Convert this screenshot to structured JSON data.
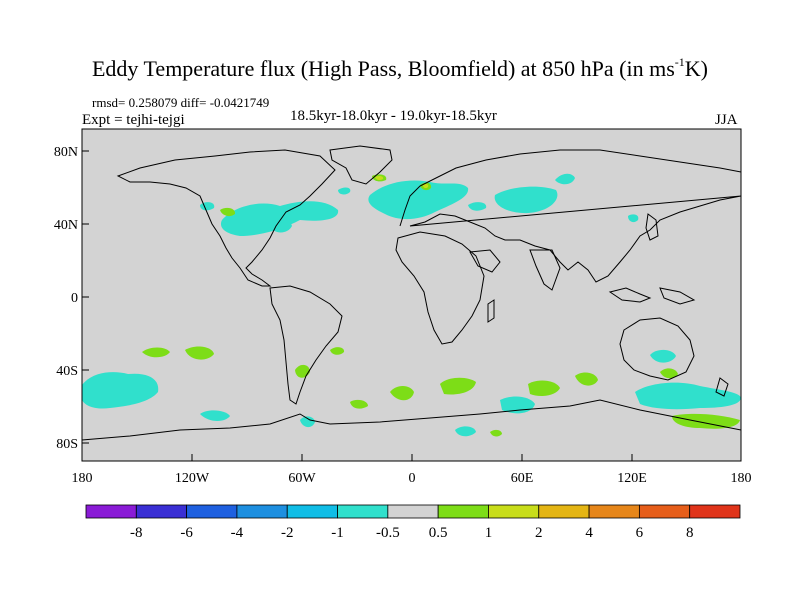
{
  "title": {
    "main": "Eddy Temperature flux (High Pass, Bloomfield) at 850 hPa (in ms",
    "sup": "-1",
    "tail": "K)"
  },
  "stats": "rmsd= 0.258079 diff= -0.0421749",
  "expt": "Expt = tejhi-tejgi",
  "period": "18.5kyr-18.0kyr - 19.0kyr-18.5kyr",
  "season": "JJA",
  "axes": {
    "y_labels": [
      "80N",
      "40N",
      "0",
      "40S",
      "80S"
    ],
    "x_labels": [
      "180",
      "120W",
      "60W",
      "0",
      "60E",
      "120E",
      "180"
    ]
  },
  "colorbar": {
    "labels": [
      "-8",
      "-6",
      "-4",
      "-2",
      "-1",
      "-0.5",
      "0.5",
      "1",
      "2",
      "4",
      "6",
      "8"
    ],
    "colors": [
      "#8a1bd6",
      "#3a2fd4",
      "#1e60e0",
      "#1d8fe0",
      "#10bde6",
      "#30e0cc",
      "#d3d3d3",
      "#7ddd17",
      "#c8dd1a",
      "#e4b514",
      "#e6861a",
      "#e65e1a",
      "#e0341a"
    ]
  },
  "map_colors": {
    "ocean": "#d3d3d3",
    "negative": "#30e0cc",
    "positive": "#7ddd17",
    "strong_positive": "#c8dd1a",
    "coast": "#000000"
  }
}
